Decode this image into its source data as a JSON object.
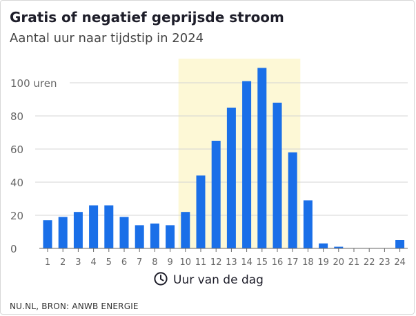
{
  "header": {
    "title": "Gratis of negatief geprijsde stroom",
    "subtitle": "Aantal uur naar tijdstip in 2024"
  },
  "footer": {
    "source": "NU.NL, BRON: ANWB ENERGIE"
  },
  "colors": {
    "bar": "#1a6fe8",
    "highlight": "#fdf8d6",
    "grid": "#d4d4d4",
    "axis": "#666666",
    "tick_text": "#666666"
  },
  "chart_data": {
    "type": "bar",
    "title": "Gratis of negatief geprijsde stroom",
    "subtitle": "Aantal uur naar tijdstip in 2024",
    "xlabel": "Uur van de dag",
    "ylabel": "",
    "ylim": [
      0,
      110
    ],
    "yticks": [
      0,
      20,
      40,
      60,
      80,
      100
    ],
    "ytick_labels": [
      "0",
      "20",
      "40",
      "60",
      "80",
      "100 uren"
    ],
    "categories": [
      "1",
      "2",
      "3",
      "4",
      "5",
      "6",
      "7",
      "8",
      "9",
      "10",
      "11",
      "12",
      "13",
      "14",
      "15",
      "16",
      "17",
      "18",
      "19",
      "20",
      "21",
      "22",
      "23",
      "24"
    ],
    "values": [
      17,
      19,
      22,
      26,
      26,
      19,
      14,
      15,
      14,
      22,
      44,
      65,
      85,
      101,
      109,
      88,
      58,
      29,
      3,
      1,
      0,
      0,
      0,
      5
    ],
    "highlight_range": [
      "10",
      "17"
    ],
    "grid": true,
    "legend": "none"
  }
}
